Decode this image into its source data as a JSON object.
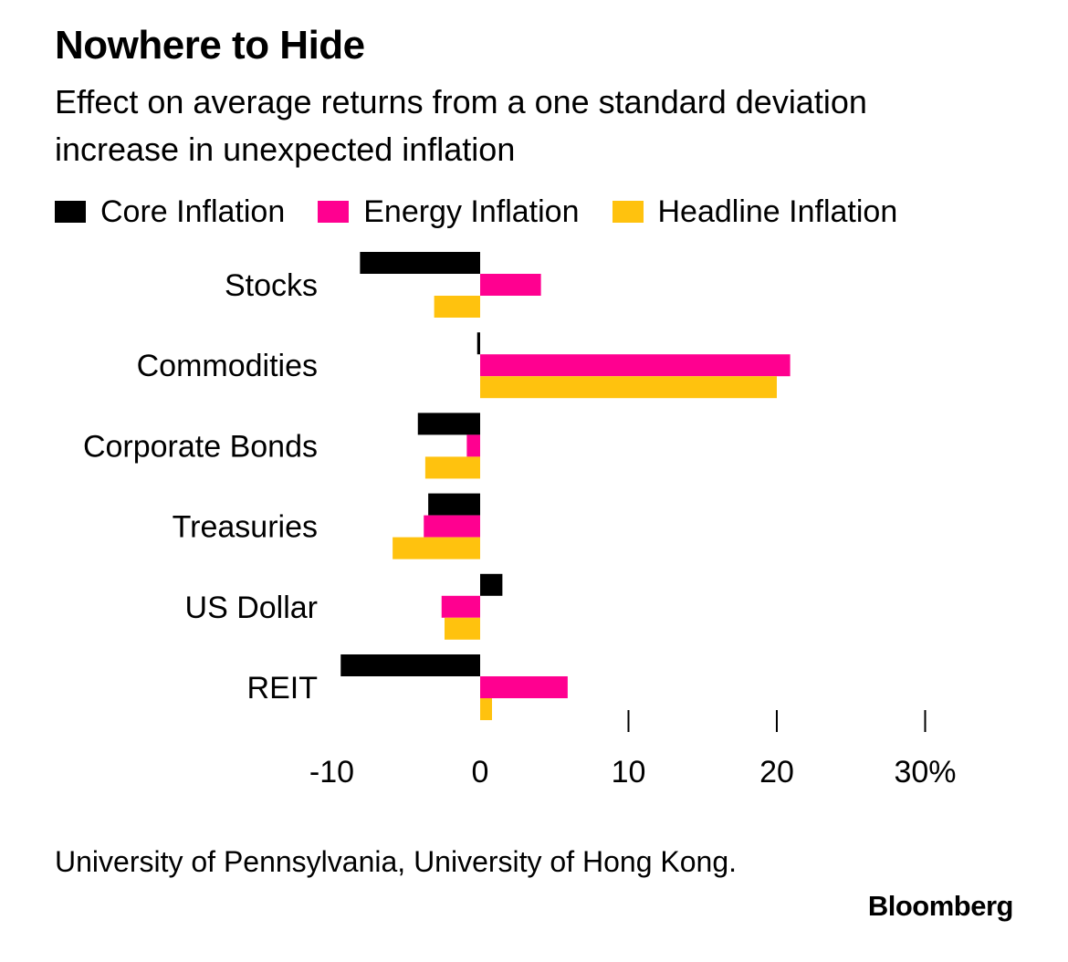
{
  "title": "Nowhere to Hide",
  "subtitle": "Effect on average returns from a one standard deviation increase in unexpected inflation",
  "legend": [
    {
      "label": "Core Inflation",
      "color": "#000000"
    },
    {
      "label": "Energy Inflation",
      "color": "#ff0090"
    },
    {
      "label": "Headline Inflation",
      "color": "#ffc20e"
    }
  ],
  "source": "University of Pennsylvania, University of Hong Kong.",
  "brand": "Bloomberg",
  "chart_data": {
    "type": "bar",
    "orientation": "horizontal",
    "categories": [
      "Stocks",
      "Commodities",
      "Corporate Bonds",
      "Treasuries",
      "US Dollar",
      "REIT"
    ],
    "series": [
      {
        "name": "Core Inflation",
        "color": "#000000",
        "values": [
          -8.1,
          -0.2,
          -4.2,
          -3.5,
          1.5,
          -9.4
        ]
      },
      {
        "name": "Energy Inflation",
        "color": "#ff0090",
        "values": [
          4.1,
          20.9,
          -0.9,
          -3.8,
          -2.6,
          5.9
        ]
      },
      {
        "name": "Headline Inflation",
        "color": "#ffc20e",
        "values": [
          -3.1,
          20.0,
          -3.7,
          -5.9,
          -2.4,
          0.8
        ]
      }
    ],
    "xlim": [
      -10,
      30
    ],
    "ticks": [
      -10,
      0,
      10,
      20,
      30
    ],
    "tick_labels": [
      "-10",
      "0",
      "10",
      "20",
      "30%"
    ],
    "grid": false,
    "legend_position": "top"
  }
}
